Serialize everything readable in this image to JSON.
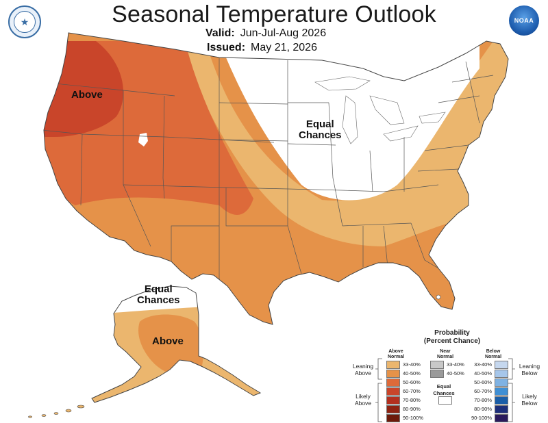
{
  "header": {
    "title": "Seasonal Temperature Outlook",
    "valid_label": "Valid:",
    "valid_value": "Jun-Jul-Aug 2026",
    "issued_label": "Issued:",
    "issued_value": "May 21, 2026"
  },
  "logos": {
    "left": "doc-seal-icon",
    "right": "noaa-logo-icon",
    "noaa_text": "NOAA"
  },
  "map_labels": {
    "above_west": "Above",
    "equal_conus_1": "Equal",
    "equal_conus_2": "Chances",
    "equal_ak_1": "Equal",
    "equal_ak_2": "Chances",
    "above_ak": "Above"
  },
  "legend": {
    "title_1": "Probability",
    "title_2": "(Percent Chance)",
    "above_head_1": "Above",
    "above_head_2": "Normal",
    "near_head_1": "Near",
    "near_head_2": "Normal",
    "below_head_1": "Below",
    "below_head_2": "Normal",
    "leaning_above_1": "Leaning",
    "leaning_above_2": "Above",
    "likely_above_1": "Likely",
    "likely_above_2": "Above",
    "leaning_below_1": "Leaning",
    "leaning_below_2": "Below",
    "likely_below_1": "Likely",
    "likely_below_2": "Below",
    "equal_1": "Equal",
    "equal_2": "Chances",
    "above": [
      {
        "label": "33-40%",
        "color": "#ebb66e"
      },
      {
        "label": "40-50%",
        "color": "#e59249"
      },
      {
        "label": "50-60%",
        "color": "#dd6a3a"
      },
      {
        "label": "60-70%",
        "color": "#c9452a"
      },
      {
        "label": "70-80%",
        "color": "#b3301f"
      },
      {
        "label": "80-90%",
        "color": "#8e2312"
      },
      {
        "label": "90-100%",
        "color": "#6d1a0a"
      }
    ],
    "near": [
      {
        "label": "33-40%",
        "color": "#c8c8c8"
      },
      {
        "label": "40-50%",
        "color": "#9a9a9a"
      }
    ],
    "below": [
      {
        "label": "33-40%",
        "color": "#c5d7ee"
      },
      {
        "label": "40-50%",
        "color": "#a6c6ea"
      },
      {
        "label": "50-60%",
        "color": "#7fb2e3"
      },
      {
        "label": "60-70%",
        "color": "#3f8fd4"
      },
      {
        "label": "70-80%",
        "color": "#1a5ea8"
      },
      {
        "label": "80-90%",
        "color": "#1d2f7a"
      },
      {
        "label": "90-100%",
        "color": "#2a1a5c"
      }
    ],
    "equal_color": "#ffffff"
  }
}
